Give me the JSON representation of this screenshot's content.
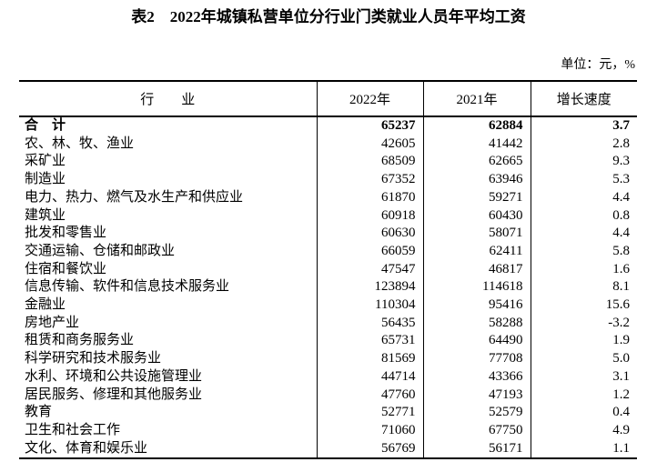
{
  "page": {
    "title": "表2　2022年城镇私营单位分行业门类就业人员年平均工资",
    "unit_note": "单位：元，%"
  },
  "table": {
    "columns": [
      "行　　业",
      "2022年",
      "2021年",
      "增长速度"
    ],
    "rows": [
      {
        "label": "合　计",
        "y2022": "65237",
        "y2021": "62884",
        "growth": "3.7",
        "bold": true
      },
      {
        "label": "农、林、牧、渔业",
        "y2022": "42605",
        "y2021": "41442",
        "growth": "2.8",
        "bold": false
      },
      {
        "label": "采矿业",
        "y2022": "68509",
        "y2021": "62665",
        "growth": "9.3",
        "bold": false
      },
      {
        "label": "制造业",
        "y2022": "67352",
        "y2021": "63946",
        "growth": "5.3",
        "bold": false
      },
      {
        "label": "电力、热力、燃气及水生产和供应业",
        "y2022": "61870",
        "y2021": "59271",
        "growth": "4.4",
        "bold": false
      },
      {
        "label": "建筑业",
        "y2022": "60918",
        "y2021": "60430",
        "growth": "0.8",
        "bold": false
      },
      {
        "label": "批发和零售业",
        "y2022": "60630",
        "y2021": "58071",
        "growth": "4.4",
        "bold": false
      },
      {
        "label": "交通运输、仓储和邮政业",
        "y2022": "66059",
        "y2021": "62411",
        "growth": "5.8",
        "bold": false
      },
      {
        "label": "住宿和餐饮业",
        "y2022": "47547",
        "y2021": "46817",
        "growth": "1.6",
        "bold": false
      },
      {
        "label": "信息传输、软件和信息技术服务业",
        "y2022": "123894",
        "y2021": "114618",
        "growth": "8.1",
        "bold": false
      },
      {
        "label": "金融业",
        "y2022": "110304",
        "y2021": "95416",
        "growth": "15.6",
        "bold": false
      },
      {
        "label": "房地产业",
        "y2022": "56435",
        "y2021": "58288",
        "growth": "-3.2",
        "bold": false
      },
      {
        "label": "租赁和商务服务业",
        "y2022": "65731",
        "y2021": "64490",
        "growth": "1.9",
        "bold": false
      },
      {
        "label": "科学研究和技术服务业",
        "y2022": "81569",
        "y2021": "77708",
        "growth": "5.0",
        "bold": false
      },
      {
        "label": "水利、环境和公共设施管理业",
        "y2022": "44714",
        "y2021": "43366",
        "growth": "3.1",
        "bold": false
      },
      {
        "label": "居民服务、修理和其他服务业",
        "y2022": "47760",
        "y2021": "47193",
        "growth": "1.2",
        "bold": false
      },
      {
        "label": "教育",
        "y2022": "52771",
        "y2021": "52579",
        "growth": "0.4",
        "bold": false
      },
      {
        "label": "卫生和社会工作",
        "y2022": "71060",
        "y2021": "67750",
        "growth": "4.9",
        "bold": false
      },
      {
        "label": "文化、体育和娱乐业",
        "y2022": "56769",
        "y2021": "56171",
        "growth": "1.1",
        "bold": false
      }
    ]
  }
}
